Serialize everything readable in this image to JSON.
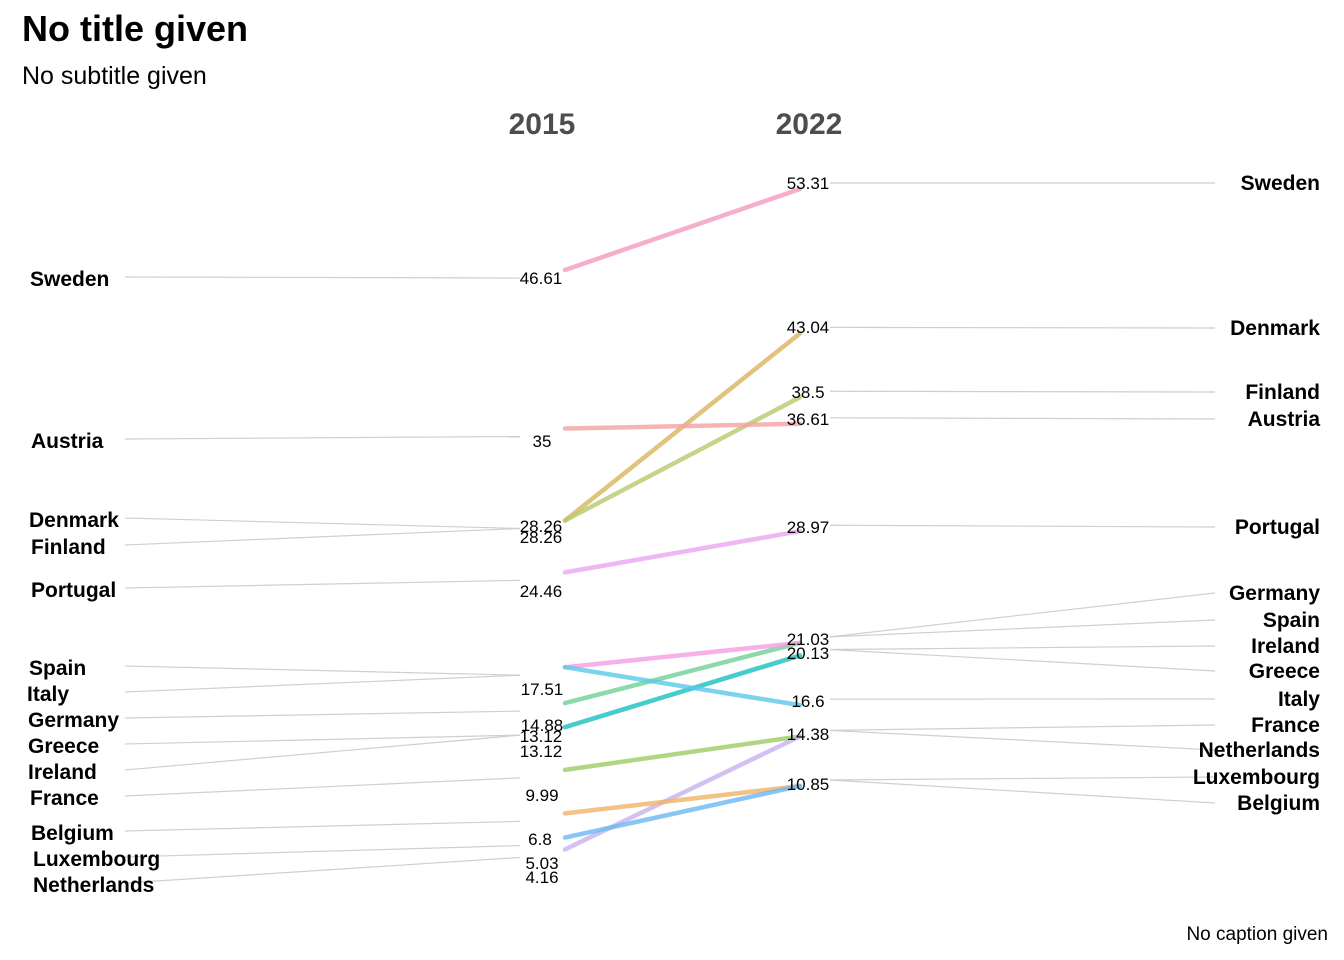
{
  "title": "No title given",
  "subtitle": "No subtitle given",
  "caption": "No caption given",
  "chart_data": {
    "type": "slope",
    "years": [
      "2015",
      "2022"
    ],
    "series": [
      {
        "name": "Sweden",
        "v2015": 46.61,
        "v2022": 53.31,
        "color": "#f49ac1"
      },
      {
        "name": "Denmark",
        "v2015": 28.26,
        "v2022": 43.04,
        "color": "#d8b55c"
      },
      {
        "name": "Finland",
        "v2015": 28.26,
        "v2022": 38.5,
        "color": "#b5c96a"
      },
      {
        "name": "Austria",
        "v2015": 35,
        "v2022": 36.61,
        "color": "#f4a3a3"
      },
      {
        "name": "Portugal",
        "v2015": 24.46,
        "v2022": 28.97,
        "color": "#e8a6f0"
      },
      {
        "name": "Germany",
        "v2015": 14.88,
        "v2022": 21.03,
        "color": "#6fcf97"
      },
      {
        "name": "Spain",
        "v2015": 17.51,
        "v2022": 21.03,
        "color": "#f39de2"
      },
      {
        "name": "Ireland",
        "v2015": 13.12,
        "v2022": 20.13,
        "color": "#4dd0c4"
      },
      {
        "name": "Greece",
        "v2015": 13.12,
        "v2022": 20.13,
        "color": "#3cc8c8"
      },
      {
        "name": "Italy",
        "v2015": 17.51,
        "v2022": 16.6,
        "color": "#5bc8e8"
      },
      {
        "name": "France",
        "v2015": 9.99,
        "v2022": 14.38,
        "color": "#9ccc65"
      },
      {
        "name": "Netherlands",
        "v2015": 4.16,
        "v2022": 14.38,
        "color": "#c5b3ee"
      },
      {
        "name": "Belgium",
        "v2015": 6.8,
        "v2022": 10.85,
        "color": "#f0b366"
      },
      {
        "name": "Luxembourg",
        "v2015": 5.03,
        "v2022": 10.85,
        "color": "#6ab8f0"
      }
    ],
    "labels_2015": [
      "46.61",
      "35",
      "28.26",
      "28.26",
      "24.46",
      "17.51",
      "14.88",
      "13.12",
      "13.12",
      "9.99",
      "6.8",
      "5.03",
      "4.16"
    ],
    "labels_2022": [
      "53.31",
      "43.04",
      "38.5",
      "36.61",
      "28.97",
      "21.03",
      "20.13",
      "16.6",
      "14.38",
      "10.85"
    ]
  }
}
